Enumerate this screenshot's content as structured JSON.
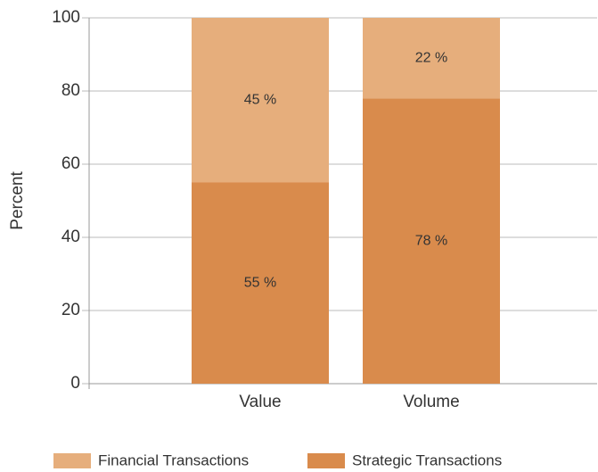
{
  "chart_data": {
    "type": "stacked_bar",
    "y_label": "Percent",
    "categories": [
      "Value",
      "Volume"
    ],
    "series": [
      {
        "name": "Strategic Transactions",
        "color": "#d98b4c",
        "values": [
          55,
          78
        ],
        "value_labels": [
          "55 %",
          "78 %"
        ]
      },
      {
        "name": "Financial Transactions",
        "color": "#e6ae7c",
        "values": [
          45,
          22
        ],
        "value_labels": [
          "45 %",
          "22 %"
        ]
      }
    ],
    "ylim": [
      0,
      100
    ],
    "yticks": [
      0,
      20,
      40,
      60,
      80,
      100
    ],
    "grid": true
  }
}
